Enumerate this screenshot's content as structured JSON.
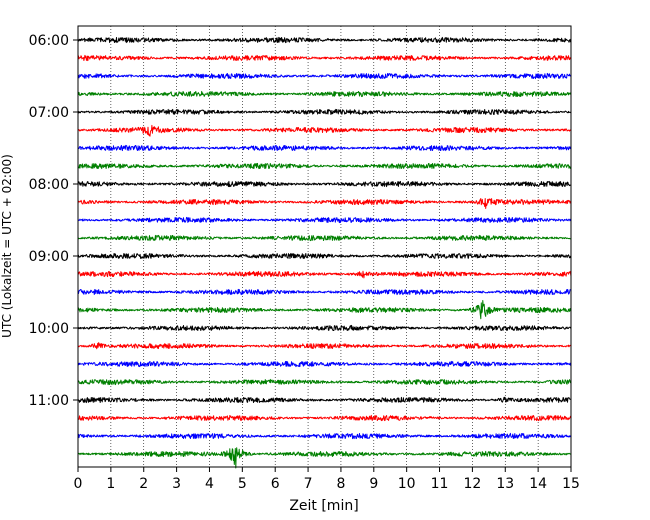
{
  "chart_data": {
    "type": "line",
    "subtype": "helicorder",
    "title": "",
    "xlabel": "Zeit  [min]",
    "ylabel": "UTC (Lokalzeit = UTC + 02:00)",
    "xlim": [
      0,
      15
    ],
    "xticks": [
      0,
      1,
      2,
      3,
      4,
      5,
      6,
      7,
      8,
      9,
      10,
      11,
      12,
      13,
      14,
      15
    ],
    "xtick_labels": [
      "0",
      "1",
      "2",
      "3",
      "4",
      "5",
      "6",
      "7",
      "8",
      "9",
      "10",
      "11",
      "12",
      "13",
      "14",
      "15"
    ],
    "yticks": [
      "06:00",
      "07:00",
      "08:00",
      "09:00",
      "10:00",
      "11:00"
    ],
    "grid": {
      "x": true,
      "y": false,
      "style": "dotted"
    },
    "trace_colors": [
      "#000000",
      "#ff0000",
      "#0000ff",
      "#008000"
    ],
    "traces": [
      {
        "time": "06:00",
        "color": "#000000",
        "events": []
      },
      {
        "time": "06:15",
        "color": "#ff0000",
        "events": []
      },
      {
        "time": "06:30",
        "color": "#0000ff",
        "events": []
      },
      {
        "time": "06:45",
        "color": "#008000",
        "events": []
      },
      {
        "time": "07:00",
        "color": "#000000",
        "events": []
      },
      {
        "time": "07:15",
        "color": "#ff0000",
        "events": [
          {
            "minute": 2.2,
            "amplitude": 0.45
          }
        ]
      },
      {
        "time": "07:30",
        "color": "#0000ff",
        "events": []
      },
      {
        "time": "07:45",
        "color": "#008000",
        "events": []
      },
      {
        "time": "08:00",
        "color": "#000000",
        "events": []
      },
      {
        "time": "08:15",
        "color": "#ff0000",
        "events": [
          {
            "minute": 12.4,
            "amplitude": 0.6
          }
        ]
      },
      {
        "time": "08:30",
        "color": "#0000ff",
        "events": []
      },
      {
        "time": "08:45",
        "color": "#008000",
        "events": []
      },
      {
        "time": "09:00",
        "color": "#000000",
        "events": []
      },
      {
        "time": "09:15",
        "color": "#ff0000",
        "events": [
          {
            "minute": 8.7,
            "amplitude": 0.35
          }
        ]
      },
      {
        "time": "09:30",
        "color": "#0000ff",
        "events": []
      },
      {
        "time": "09:45",
        "color": "#008000",
        "events": [
          {
            "minute": 12.3,
            "amplitude": 1.2
          }
        ]
      },
      {
        "time": "10:00",
        "color": "#000000",
        "events": []
      },
      {
        "time": "10:15",
        "color": "#ff0000",
        "events": [
          {
            "minute": 0.6,
            "amplitude": 0.4
          }
        ]
      },
      {
        "time": "10:30",
        "color": "#0000ff",
        "events": []
      },
      {
        "time": "10:45",
        "color": "#008000",
        "events": []
      },
      {
        "time": "11:00",
        "color": "#000000",
        "events": [
          {
            "minute": 13.0,
            "amplitude": 0.3
          }
        ]
      },
      {
        "time": "11:15",
        "color": "#ff0000",
        "events": []
      },
      {
        "time": "11:30",
        "color": "#0000ff",
        "events": []
      },
      {
        "time": "11:45",
        "color": "#008000",
        "events": [
          {
            "minute": 4.8,
            "amplitude": 1.6
          }
        ]
      }
    ]
  }
}
